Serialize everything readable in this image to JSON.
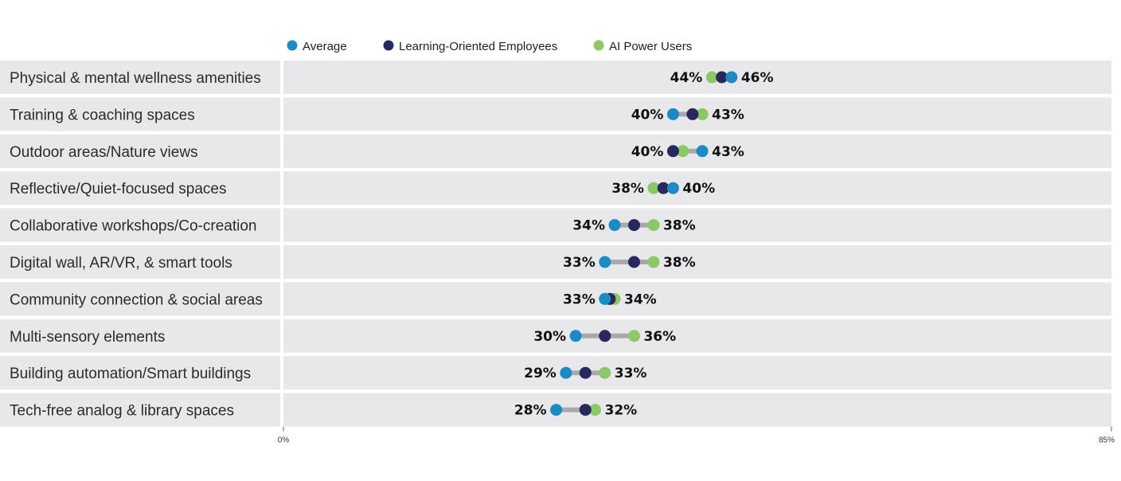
{
  "chart_data": {
    "type": "dot",
    "categories": [
      "Physical & mental wellness amenities",
      "Training & coaching spaces",
      "Outdoor areas/Nature views",
      "Reflective/Quiet-focused spaces",
      "Collaborative workshops/Co-creation",
      "Digital wall, AR/VR, & smart tools",
      "Community connection & social areas",
      "Multi-sensory elements",
      "Building automation/Smart buildings",
      "Tech-free analog & library spaces"
    ],
    "series": [
      {
        "name": "Average",
        "color": "#1a8bc4",
        "values": [
          46,
          40,
          43,
          40,
          34,
          33,
          33,
          30,
          29,
          28
        ]
      },
      {
        "name": "Learning-Oriented Employees",
        "color": "#27285e",
        "values": [
          45,
          42,
          40,
          39,
          36,
          36,
          33.5,
          33,
          31,
          31
        ]
      },
      {
        "name": "AI Power Users",
        "color": "#8cc865",
        "values": [
          44,
          43,
          41,
          38,
          38,
          38,
          34,
          36,
          33,
          32
        ]
      }
    ],
    "min_labels": [
      "44%",
      "40%",
      "40%",
      "38%",
      "34%",
      "33%",
      "33%",
      "30%",
      "29%",
      "28%"
    ],
    "max_labels": [
      "46%",
      "43%",
      "43%",
      "40%",
      "38%",
      "38%",
      "34%",
      "36%",
      "33%",
      "32%"
    ],
    "xlim": [
      0,
      85
    ],
    "x_tick_labels": [
      "0%",
      "85%"
    ],
    "legend_position": "top",
    "colors": {
      "row_background": "#e8e8ea",
      "connector": "#a9a9ab"
    }
  }
}
